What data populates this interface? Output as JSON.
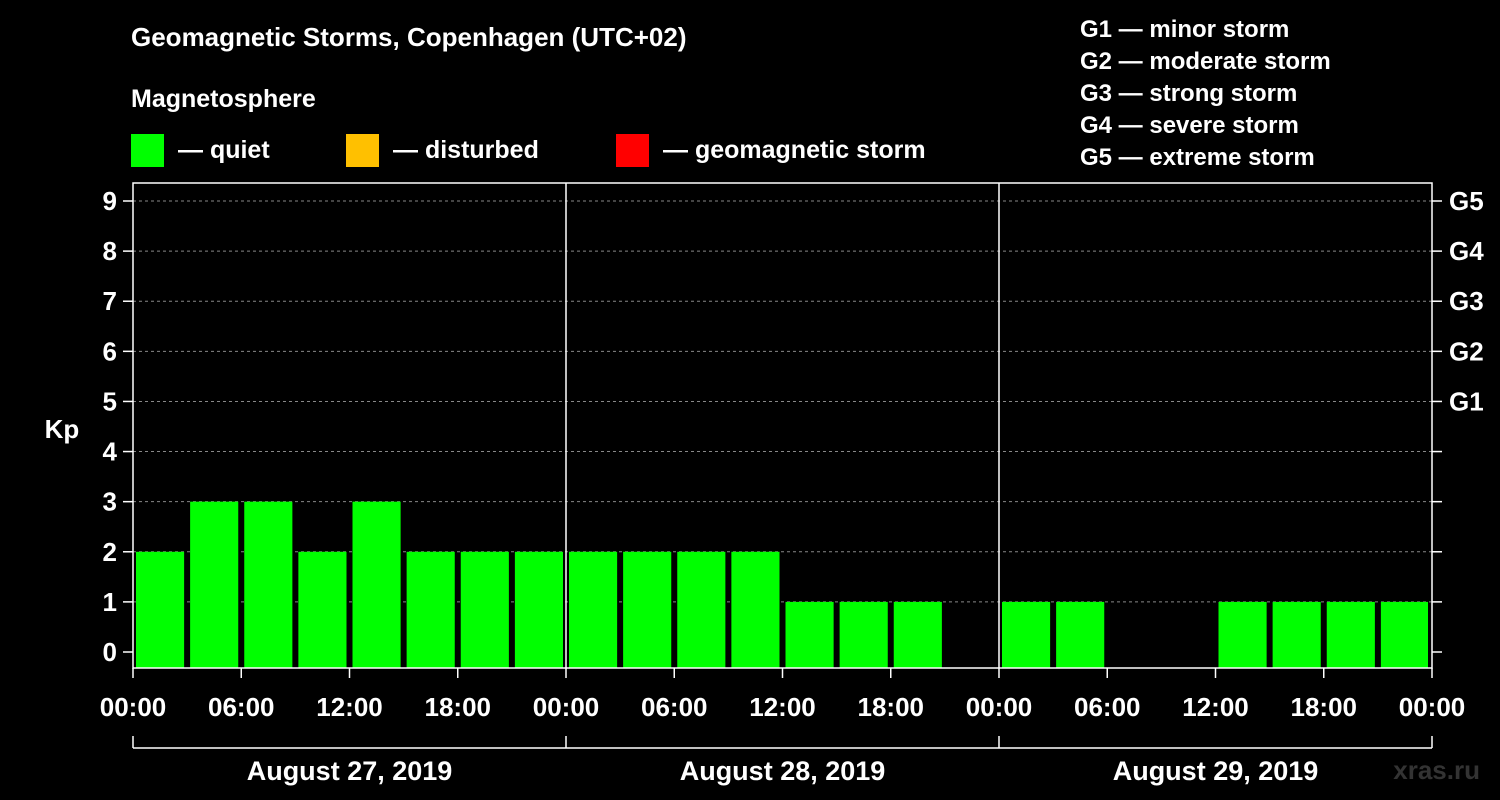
{
  "header": {
    "title": "Geomagnetic Storms, Copenhagen (UTC+02)",
    "subtitle": "Magnetosphere"
  },
  "legend": [
    {
      "label": "— quiet",
      "color": "#00ff00"
    },
    {
      "label": "— disturbed",
      "color": "#ffc000"
    },
    {
      "label": "— geomagnetic storm",
      "color": "#ff0000"
    }
  ],
  "storm_levels": [
    "G1 — minor storm",
    "G2 — moderate storm",
    "G3 — strong storm",
    "G4 — severe storm",
    "G5 — extreme storm"
  ],
  "watermark": "xras.ru",
  "chart_data": {
    "type": "bar",
    "title": "Geomagnetic Storms, Copenhagen (UTC+02)",
    "ylabel": "Kp",
    "ylim": [
      0,
      9
    ],
    "yticks": [
      0,
      1,
      2,
      3,
      4,
      5,
      6,
      7,
      8,
      9
    ],
    "right_axis_labels": [
      {
        "kp": 5,
        "label": "G1"
      },
      {
        "kp": 6,
        "label": "G2"
      },
      {
        "kp": 7,
        "label": "G3"
      },
      {
        "kp": 8,
        "label": "G4"
      },
      {
        "kp": 9,
        "label": "G5"
      }
    ],
    "xtick_labels": [
      "00:00",
      "06:00",
      "12:00",
      "18:00",
      "00:00",
      "06:00",
      "12:00",
      "18:00",
      "00:00",
      "06:00",
      "12:00",
      "18:00",
      "00:00"
    ],
    "days": [
      "August 27, 2019",
      "August 28, 2019",
      "August 29, 2019"
    ],
    "bar_hours": [
      1.5,
      4.5,
      7.5,
      10.5,
      13.5,
      16.5,
      19.5,
      22.5,
      25.5,
      28.5,
      31.5,
      34.5,
      37.5,
      40.5,
      43.5,
      46.5,
      49.5,
      52.5,
      55.5,
      58.5,
      61.5,
      64.5,
      67.5,
      70.5
    ],
    "values": [
      2,
      3,
      3,
      2,
      3,
      2,
      2,
      2,
      2,
      2,
      2,
      2,
      1,
      1,
      1,
      0,
      1,
      1,
      0,
      0,
      1,
      1,
      1,
      1
    ],
    "color_quiet": "#00ff00",
    "grid": true
  }
}
